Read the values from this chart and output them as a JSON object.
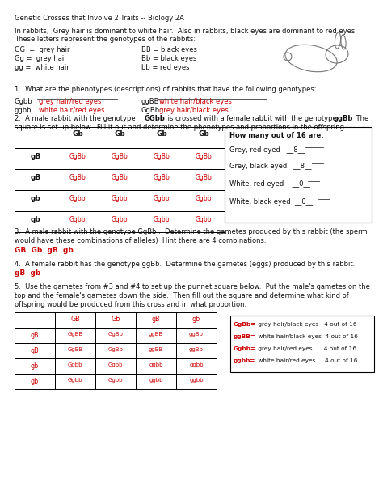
{
  "title": "Genetic Crosses that Involve 2 Traits -- Biology 2A",
  "intro1": "In rabbits,  Grey hair is dominant to white hair.  Also in rabbits, black eyes are dominant to red eyes.",
  "intro2": "These letters represent the genotypes of the rabbits:",
  "genotypes_left": [
    "GG  =  grey hair",
    "Gg =  grey hair",
    "gg =  white hair"
  ],
  "genotypes_right": [
    "BB = black eyes",
    "Bb = black eyes",
    "bb = red eyes"
  ],
  "q1_text": "1.  What are the phenotypes (descriptions) of rabbits that have the following genotypes:",
  "q1_r1": [
    "Ggbb",
    "grey hair/red eyes",
    "ggBB",
    "white hair/black eyes"
  ],
  "q1_r2": [
    "ggbb",
    "white hair/red eyes",
    "GgBb",
    "grey hair/black eyes"
  ],
  "punnett2_header": [
    "Gb",
    "Gb",
    "Gb",
    "Gb"
  ],
  "punnett2_rows": [
    [
      "gB",
      "GgBb",
      "GgBb",
      "GgBb",
      "GgBb"
    ],
    [
      "gB",
      "GgBb",
      "GgBb",
      "GgBb",
      "GgBb"
    ],
    [
      "gb",
      "Ggbb",
      "Ggbb",
      "Ggbb",
      "Ggbb"
    ],
    [
      "gb",
      "Ggbb",
      "Ggbb",
      "Ggbb",
      "Ggbb"
    ]
  ],
  "side_box2_title": "How many out of 16 are:",
  "side_box2": [
    "Grey, red eyed   __8__",
    "Grey, black eyed   __8__",
    "White, red eyed    __0__",
    "White, black eyed  __0__"
  ],
  "q3_ans": "GB  Gb  gB  gb",
  "q4_ans": "gB  gb",
  "punnett5_header": [
    "GB",
    "Gb",
    "gB",
    "gb"
  ],
  "punnett5_rows": [
    [
      "gB",
      "GgBB",
      "GgBb",
      "ggBB",
      "ggBb"
    ],
    [
      "gB",
      "GgBB",
      "GgBb",
      "ggBB",
      "ggBb"
    ],
    [
      "gb",
      "Ggbb",
      "Ggbb",
      "ggbb",
      "ggbb"
    ],
    [
      "gb",
      "Ggbb",
      "Ggbb",
      "ggbb",
      "ggbb"
    ]
  ],
  "side_box5": [
    [
      "GgBb=",
      " grey hair/black eyes   4 out of 16"
    ],
    [
      "ggBB=",
      " white hair/black eyes  4 out of 16"
    ],
    [
      "Ggbb=",
      " grey hair/red eyes      4 out of 16"
    ],
    [
      "ggbb=",
      " white hair/red eyes     4 out of 16"
    ]
  ],
  "red": "#cc0000",
  "black": "#111111"
}
